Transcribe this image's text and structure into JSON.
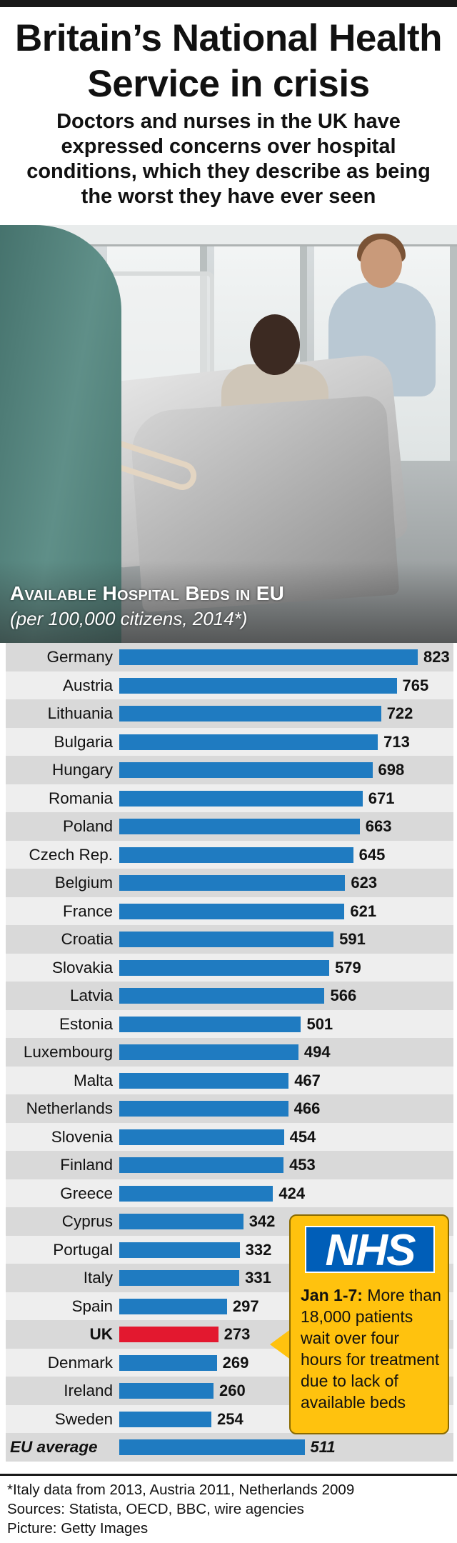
{
  "header": {
    "title": "Britain’s National Health Service in crisis",
    "subtitle": "Doctors and nurses in the UK have expressed concerns over hospital conditions, which they describe as being the worst they have ever seen"
  },
  "chart_data": {
    "type": "bar",
    "orientation": "horizontal",
    "title": "Available Hospital Beds in EU",
    "subtitle": "(per 100,000 citizens, 2014*)",
    "xlim": [
      0,
      900
    ],
    "grid": false,
    "categories": [
      "Germany",
      "Austria",
      "Lithuania",
      "Bulgaria",
      "Hungary",
      "Romania",
      "Poland",
      "Czech Rep.",
      "Belgium",
      "France",
      "Croatia",
      "Slovakia",
      "Latvia",
      "Estonia",
      "Luxembourg",
      "Malta",
      "Netherlands",
      "Slovenia",
      "Finland",
      "Greece",
      "Cyprus",
      "Portugal",
      "Italy",
      "Spain",
      "UK",
      "Denmark",
      "Ireland",
      "Sweden",
      "EU average"
    ],
    "values": [
      823,
      765,
      722,
      713,
      698,
      671,
      663,
      645,
      623,
      621,
      591,
      579,
      566,
      501,
      494,
      467,
      466,
      454,
      453,
      424,
      342,
      332,
      331,
      297,
      273,
      269,
      260,
      254,
      511
    ],
    "highlight": "UK",
    "colors": {
      "bar": "#1f7bc1",
      "highlight": "#e3182f",
      "row_dark": "#d9d9d9",
      "row_light": "#eeeeee"
    }
  },
  "callout": {
    "logo": "NHS",
    "date": "Jan 1-7:",
    "text": "More than 18,000 patients wait over four hours for treatment due to lack of available beds",
    "colors": {
      "background": "#ffc20e",
      "logo": "#005eb8"
    }
  },
  "footnote": {
    "line1": "*Italy data from 2013, Austria 2011, Netherlands 2009",
    "line2": "Sources: Statista, OECD, BBC, wire agencies",
    "line3": "Picture: Getty Images"
  }
}
